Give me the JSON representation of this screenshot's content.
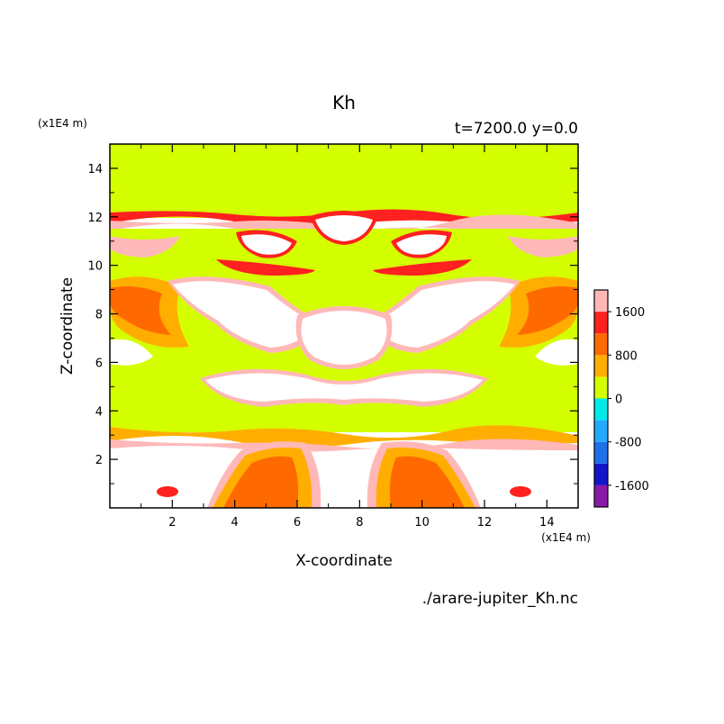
{
  "chart_data": {
    "type": "heatmap",
    "title": "Kh",
    "subtitle": "t=7200.0 y=0.0",
    "xlabel": "X-coordinate",
    "ylabel": "Z-coordinate",
    "x_unit": "(x1E4 m)",
    "y_unit": "(x1E4 m)",
    "source_file": "./arare-jupiter_Kh.nc",
    "xlim": [
      0,
      15
    ],
    "ylim": [
      0,
      15
    ],
    "x_ticks": [
      2,
      4,
      6,
      8,
      10,
      12,
      14
    ],
    "y_ticks": [
      2,
      4,
      6,
      8,
      10,
      12,
      14
    ],
    "grid": false,
    "colorbar": {
      "ticks": [
        1600,
        800,
        0,
        -800,
        -1600
      ],
      "levels": [
        {
          "low": -2000,
          "high": -1600,
          "color": "#8a1aa8"
        },
        {
          "low": -1600,
          "high": -1200,
          "color": "#1515c8"
        },
        {
          "low": -1200,
          "high": -800,
          "color": "#1f70e8"
        },
        {
          "low": -800,
          "high": -400,
          "color": "#22aaff"
        },
        {
          "low": -400,
          "high": 0,
          "color": "#00eaea"
        },
        {
          "low": 0,
          "high": 400,
          "color": "#d4ff00"
        },
        {
          "low": 400,
          "high": 800,
          "color": "#ffae00"
        },
        {
          "low": 800,
          "high": 1200,
          "color": "#ff6a00"
        },
        {
          "low": 1200,
          "high": 1600,
          "color": "#ff2020"
        },
        {
          "low": 1600,
          "high": 2000,
          "color": "#ffb8b8"
        }
      ],
      "above_max_color": "#ffffff"
    },
    "regions": [
      {
        "z": [
          12.0,
          15.0
        ],
        "value": 200
      },
      {
        "z": [
          3.0,
          12.0
        ],
        "value": 200,
        "mixed": true
      },
      {
        "z": [
          0.0,
          3.0
        ],
        "value": 2200,
        "mixed": true
      }
    ]
  }
}
